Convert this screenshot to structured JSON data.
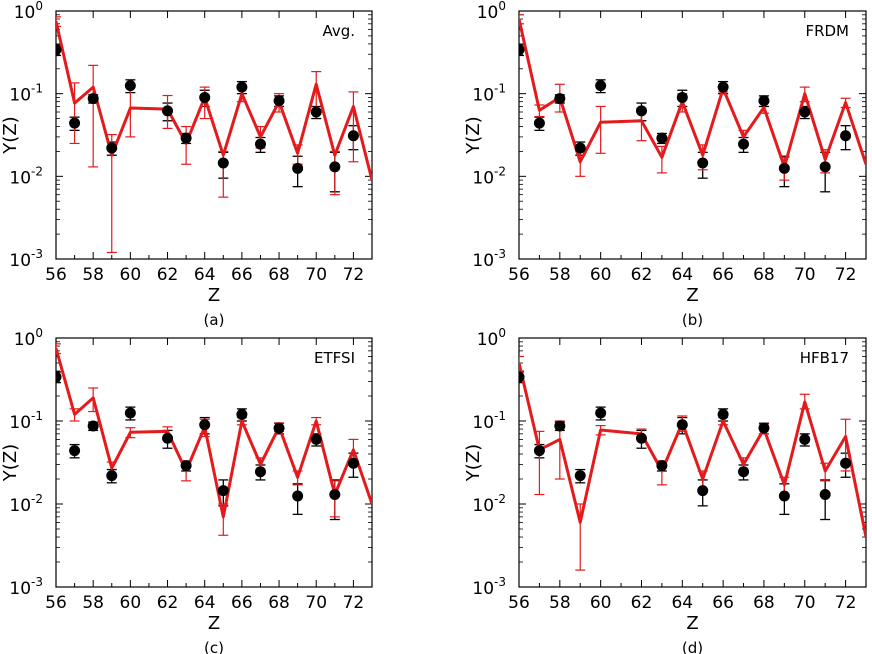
{
  "chart_data": [
    {
      "type": "line",
      "panel_label": "(a)",
      "annotation": "Avg.",
      "xlabel": "Z",
      "ylabel": "Y(Z)",
      "xlim": [
        56,
        73
      ],
      "ylim": [
        0.001,
        1
      ],
      "yscale": "log",
      "xticks": [
        56,
        58,
        60,
        62,
        64,
        66,
        68,
        70,
        72
      ],
      "yticks": [
        {
          "base": "10",
          "exp": "-3"
        },
        {
          "base": "10",
          "exp": "-2"
        },
        {
          "base": "10",
          "exp": "-1"
        },
        {
          "base": "10",
          "exp": "0"
        }
      ],
      "grid": false,
      "series": [
        {
          "kind": "experiment",
          "color": "#000000",
          "x": [
            56,
            57,
            58,
            59,
            60,
            62,
            63,
            64,
            65,
            66,
            67,
            68,
            69,
            70,
            71,
            72
          ],
          "y": [
            0.34,
            0.044,
            0.087,
            0.022,
            0.125,
            0.062,
            0.029,
            0.09,
            0.0145,
            0.12,
            0.0245,
            0.082,
            0.0125,
            0.06,
            0.013,
            0.031
          ],
          "err_low": [
            0.05,
            0.008,
            0.01,
            0.004,
            0.022,
            0.015,
            0.004,
            0.02,
            0.005,
            0.02,
            0.005,
            0.012,
            0.005,
            0.01,
            0.0065,
            0.01
          ],
          "err_high": [
            0.05,
            0.008,
            0.01,
            0.004,
            0.022,
            0.015,
            0.004,
            0.02,
            0.005,
            0.02,
            0.005,
            0.012,
            0.005,
            0.01,
            0.0065,
            0.01
          ]
        },
        {
          "kind": "model",
          "color": "#e41a1c",
          "x": [
            56,
            57,
            58,
            59,
            60,
            62,
            63,
            64,
            65,
            66,
            67,
            68,
            69,
            70,
            71,
            72,
            73
          ],
          "y": [
            0.75,
            0.077,
            0.12,
            0.018,
            0.067,
            0.065,
            0.025,
            0.09,
            0.018,
            0.1,
            0.03,
            0.08,
            0.019,
            0.13,
            0.018,
            0.07,
            0.009
          ],
          "err_low": [
            0.1,
            0.052,
            0.107,
            0.0168,
            0.037,
            0.027,
            0.011,
            0.04,
            0.0124,
            0.02,
            0.008,
            0.02,
            0.005,
            0.07,
            0.012,
            0.055,
            0
          ],
          "err_high": [
            0.1,
            0.058,
            0.1,
            0.014,
            0.053,
            0.03,
            0.015,
            0.03,
            0.002,
            0.02,
            0.01,
            0.02,
            0.005,
            0.055,
            0.002,
            0.035,
            0
          ]
        }
      ]
    },
    {
      "type": "line",
      "panel_label": "(b)",
      "annotation": "FRDM",
      "xlabel": "Z",
      "ylabel": "Y(Z)",
      "xlim": [
        56,
        73
      ],
      "ylim": [
        0.001,
        1
      ],
      "yscale": "log",
      "xticks": [
        56,
        58,
        60,
        62,
        64,
        66,
        68,
        70,
        72
      ],
      "yticks": [
        {
          "base": "10",
          "exp": "-3"
        },
        {
          "base": "10",
          "exp": "-2"
        },
        {
          "base": "10",
          "exp": "-1"
        },
        {
          "base": "10",
          "exp": "0"
        }
      ],
      "grid": false,
      "series": [
        {
          "kind": "experiment",
          "color": "#000000",
          "x": [
            56,
            57,
            58,
            59,
            60,
            62,
            63,
            64,
            65,
            66,
            67,
            68,
            69,
            70,
            71,
            72
          ],
          "y": [
            0.34,
            0.044,
            0.087,
            0.022,
            0.125,
            0.062,
            0.029,
            0.09,
            0.0145,
            0.12,
            0.0245,
            0.082,
            0.0125,
            0.06,
            0.013,
            0.031
          ],
          "err_low": [
            0.05,
            0.008,
            0.01,
            0.004,
            0.022,
            0.015,
            0.004,
            0.02,
            0.005,
            0.02,
            0.005,
            0.012,
            0.005,
            0.01,
            0.0065,
            0.01
          ],
          "err_high": [
            0.05,
            0.008,
            0.01,
            0.004,
            0.022,
            0.015,
            0.004,
            0.02,
            0.005,
            0.02,
            0.005,
            0.012,
            0.005,
            0.01,
            0.0065,
            0.01
          ]
        },
        {
          "kind": "model",
          "color": "#e41a1c",
          "x": [
            56,
            57,
            58,
            59,
            60,
            62,
            63,
            64,
            65,
            66,
            67,
            68,
            69,
            70,
            71,
            72,
            73
          ],
          "y": [
            0.8,
            0.063,
            0.09,
            0.015,
            0.045,
            0.047,
            0.017,
            0.08,
            0.018,
            0.115,
            0.03,
            0.068,
            0.013,
            0.1,
            0.016,
            0.078,
            0.014
          ],
          "err_low": [
            0.1,
            0.01,
            0.03,
            0.005,
            0.026,
            0.02,
            0.006,
            0.02,
            0.006,
            0.01,
            0.006,
            0.01,
            0.004,
            0.02,
            0.005,
            0.01,
            0
          ],
          "err_high": [
            0.1,
            0.01,
            0.04,
            0.005,
            0.025,
            0.02,
            0.006,
            0.02,
            0.006,
            0.01,
            0.006,
            0.01,
            0.004,
            0.02,
            0.005,
            0.01,
            0
          ]
        }
      ]
    },
    {
      "type": "line",
      "panel_label": "(c)",
      "annotation": "ETFSI",
      "xlabel": "Z",
      "ylabel": "Y(Z)",
      "xlim": [
        56,
        73
      ],
      "ylim": [
        0.001,
        1
      ],
      "yscale": "log",
      "xticks": [
        56,
        58,
        60,
        62,
        64,
        66,
        68,
        70,
        72
      ],
      "yticks": [
        {
          "base": "10",
          "exp": "-3"
        },
        {
          "base": "10",
          "exp": "-2"
        },
        {
          "base": "10",
          "exp": "-1"
        },
        {
          "base": "10",
          "exp": "0"
        }
      ],
      "grid": false,
      "series": [
        {
          "kind": "experiment",
          "color": "#000000",
          "x": [
            56,
            57,
            58,
            59,
            60,
            62,
            63,
            64,
            65,
            66,
            67,
            68,
            69,
            70,
            71,
            72
          ],
          "y": [
            0.34,
            0.044,
            0.087,
            0.022,
            0.125,
            0.062,
            0.029,
            0.09,
            0.0145,
            0.12,
            0.0245,
            0.082,
            0.0125,
            0.06,
            0.013,
            0.031
          ],
          "err_low": [
            0.05,
            0.008,
            0.01,
            0.004,
            0.022,
            0.015,
            0.004,
            0.02,
            0.005,
            0.02,
            0.005,
            0.012,
            0.005,
            0.01,
            0.0065,
            0.01
          ],
          "err_high": [
            0.05,
            0.008,
            0.01,
            0.004,
            0.022,
            0.015,
            0.004,
            0.02,
            0.005,
            0.02,
            0.005,
            0.012,
            0.005,
            0.01,
            0.0065,
            0.01
          ]
        },
        {
          "kind": "model",
          "color": "#e41a1c",
          "x": [
            56,
            57,
            58,
            59,
            60,
            62,
            63,
            64,
            65,
            66,
            67,
            68,
            69,
            70,
            71,
            72,
            73
          ],
          "y": [
            0.75,
            0.12,
            0.19,
            0.027,
            0.073,
            0.075,
            0.025,
            0.085,
            0.007,
            0.1,
            0.03,
            0.085,
            0.021,
            0.1,
            0.013,
            0.045,
            0.01
          ],
          "err_low": [
            0.1,
            0.02,
            0.06,
            0.005,
            0.01,
            0.01,
            0.006,
            0.02,
            0.0028,
            0.01,
            0.006,
            0.01,
            0.004,
            0.01,
            0.006,
            0.015,
            0
          ],
          "err_high": [
            0.1,
            0.02,
            0.06,
            0.005,
            0.01,
            0.01,
            0.006,
            0.02,
            0.003,
            0.01,
            0.006,
            0.01,
            0.004,
            0.01,
            0.006,
            0.015,
            0
          ]
        }
      ]
    },
    {
      "type": "line",
      "panel_label": "(d)",
      "annotation": "HFB17",
      "xlabel": "Z",
      "ylabel": "Y(Z)",
      "xlim": [
        56,
        73
      ],
      "ylim": [
        0.001,
        1
      ],
      "yscale": "log",
      "xticks": [
        56,
        58,
        60,
        62,
        64,
        66,
        68,
        70,
        72
      ],
      "yticks": [
        {
          "base": "10",
          "exp": "-3"
        },
        {
          "base": "10",
          "exp": "-2"
        },
        {
          "base": "10",
          "exp": "-1"
        },
        {
          "base": "10",
          "exp": "0"
        }
      ],
      "grid": false,
      "series": [
        {
          "kind": "experiment",
          "color": "#000000",
          "x": [
            56,
            57,
            58,
            59,
            60,
            62,
            63,
            64,
            65,
            66,
            67,
            68,
            69,
            70,
            71,
            72
          ],
          "y": [
            0.34,
            0.044,
            0.087,
            0.022,
            0.125,
            0.062,
            0.029,
            0.09,
            0.0145,
            0.12,
            0.0245,
            0.082,
            0.0125,
            0.06,
            0.013,
            0.031
          ],
          "err_low": [
            0.05,
            0.008,
            0.01,
            0.004,
            0.022,
            0.015,
            0.004,
            0.02,
            0.005,
            0.02,
            0.005,
            0.012,
            0.005,
            0.01,
            0.0065,
            0.01
          ],
          "err_high": [
            0.05,
            0.008,
            0.01,
            0.004,
            0.022,
            0.015,
            0.004,
            0.02,
            0.005,
            0.02,
            0.005,
            0.012,
            0.005,
            0.01,
            0.0065,
            0.01
          ]
        },
        {
          "kind": "model",
          "color": "#e41a1c",
          "x": [
            56,
            57,
            58,
            59,
            60,
            62,
            63,
            64,
            65,
            66,
            67,
            68,
            69,
            70,
            71,
            72,
            73
          ],
          "y": [
            0.5,
            0.045,
            0.06,
            0.006,
            0.078,
            0.07,
            0.025,
            0.095,
            0.02,
            0.1,
            0.03,
            0.08,
            0.017,
            0.17,
            0.025,
            0.065,
            0.004
          ],
          "err_low": [
            0.1,
            0.032,
            0.04,
            0.0044,
            0.01,
            0.01,
            0.008,
            0.02,
            0.005,
            0.01,
            0.006,
            0.01,
            0.004,
            0.03,
            0.006,
            0.04,
            0
          ],
          "err_high": [
            0.1,
            0.03,
            0.04,
            0.004,
            0.01,
            0.01,
            0.008,
            0.02,
            0.005,
            0.01,
            0.006,
            0.01,
            0.004,
            0.04,
            0.006,
            0.04,
            0
          ]
        }
      ]
    }
  ]
}
